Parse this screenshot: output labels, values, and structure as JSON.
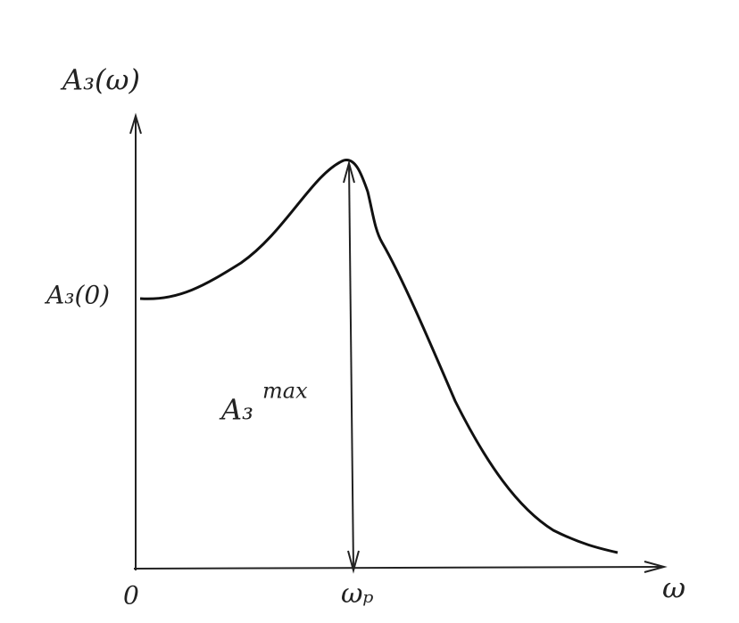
{
  "axes": {
    "y_label": "A₃(ω)",
    "x_label": "ω",
    "origin": "0"
  },
  "labels": {
    "start_value": "A₃(0)",
    "peak_base": "A₃",
    "peak_sup": "max",
    "peak_frequency": "ωₚ"
  }
}
